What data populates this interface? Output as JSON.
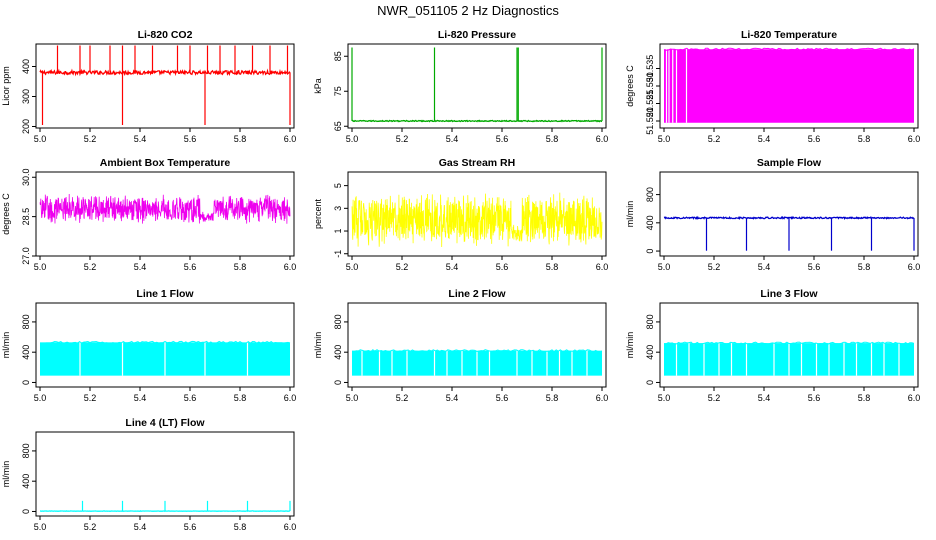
{
  "figure": {
    "title": "NWR_051105  2 Hz Diagnostics"
  },
  "chart_data": [
    {
      "type": "line",
      "title": "Li-820 CO2",
      "ylabel": "Licor ppm",
      "color": "#ff0000",
      "xlim": [
        5.0,
        6.0
      ],
      "ylim": [
        195,
        475
      ],
      "xticks": [
        5.0,
        5.2,
        5.4,
        5.6,
        5.8,
        6.0
      ],
      "xtick_labels": [
        "5.0",
        "5.2",
        "5.4",
        "5.6",
        "5.8",
        "6.0"
      ],
      "yticks": [
        200,
        300,
        400
      ],
      "ytick_labels": [
        "200",
        "300",
        "400"
      ],
      "baseline": 380,
      "noise": 6,
      "spikes_up": [
        5.07,
        5.16,
        5.2,
        5.28,
        5.33,
        5.38,
        5.45,
        5.55,
        5.6,
        5.67,
        5.72,
        5.78,
        5.85,
        5.92,
        5.99
      ],
      "spike_up_to": 470,
      "spikes_down": [
        5.01,
        5.33,
        5.66,
        6.0
      ],
      "spike_down_to": 205
    },
    {
      "type": "line",
      "title": "Li-820 Pressure",
      "ylabel": "kPa",
      "color": "#00aa00",
      "xlim": [
        5.0,
        6.0
      ],
      "ylim": [
        64.5,
        88.5
      ],
      "xticks": [
        5.0,
        5.2,
        5.4,
        5.6,
        5.8,
        6.0
      ],
      "xtick_labels": [
        "5.0",
        "5.2",
        "5.4",
        "5.6",
        "5.8",
        "6.0"
      ],
      "yticks": [
        65,
        75,
        85
      ],
      "ytick_labels": [
        "65",
        "75",
        "85"
      ],
      "baseline": 66.5,
      "noise": 0.15,
      "spikes_up": [
        5.0,
        5.33,
        5.66,
        5.665,
        6.0
      ],
      "spike_up_to": 87.5,
      "spikes_down": [],
      "spike_down_to": 66
    },
    {
      "type": "area",
      "title": "Li-820 Temperature",
      "ylabel": "degrees C",
      "color": "#ff00ff",
      "xlim": [
        5.0,
        6.0
      ],
      "ylim": [
        51.518,
        51.542
      ],
      "xticks": [
        5.0,
        5.2,
        5.4,
        5.6,
        5.8,
        6.0
      ],
      "xtick_labels": [
        "5.0",
        "5.2",
        "5.4",
        "5.6",
        "5.8",
        "6.0"
      ],
      "yticks": [
        51.52,
        51.525,
        51.53,
        51.535
      ],
      "ytick_labels": [
        "51.520",
        "51.525",
        "51.530",
        "51.535"
      ],
      "fill_low": 51.5195,
      "fill_high": 51.5405,
      "gaps": [
        5.01,
        5.02,
        5.035,
        5.05,
        5.09
      ]
    },
    {
      "type": "line",
      "title": "Ambient Box Temperature",
      "ylabel": "degrees C",
      "color": "#ee00ee",
      "xlim": [
        5.0,
        6.0
      ],
      "ylim": [
        27.0,
        30.2
      ],
      "xticks": [
        5.0,
        5.2,
        5.4,
        5.6,
        5.8,
        6.0
      ],
      "xtick_labels": [
        "5.0",
        "5.2",
        "5.4",
        "5.6",
        "5.8",
        "6.0"
      ],
      "yticks": [
        27.0,
        28.5,
        30.0
      ],
      "ytick_labels": [
        "27.0",
        "28.5",
        "30.0"
      ],
      "center": 28.8,
      "amplitude": 0.6,
      "dip_range": [
        5.64,
        5.69
      ],
      "dip_center": 28.5
    },
    {
      "type": "line",
      "title": "Gas Stream RH",
      "ylabel": "percent",
      "color": "#ffff00",
      "xlim": [
        5.0,
        6.0
      ],
      "ylim": [
        -1.2,
        6.2
      ],
      "xticks": [
        5.0,
        5.2,
        5.4,
        5.6,
        5.8,
        6.0
      ],
      "xtick_labels": [
        "5.0",
        "5.2",
        "5.4",
        "5.6",
        "5.8",
        "6.0"
      ],
      "yticks": [
        -1,
        1,
        3,
        5
      ],
      "ytick_labels": [
        "-1",
        "1",
        "3",
        "5"
      ],
      "center": 2.0,
      "amplitude": 2.5,
      "dip_range": [
        5.64,
        5.68
      ],
      "dip_center": 0.8
    },
    {
      "type": "line",
      "title": "Sample Flow",
      "ylabel": "ml/min",
      "color": "#0000cc",
      "xlim": [
        5.0,
        6.0
      ],
      "ylim": [
        -70,
        1120
      ],
      "xticks": [
        5.0,
        5.2,
        5.4,
        5.6,
        5.8,
        6.0
      ],
      "xtick_labels": [
        "5.0",
        "5.2",
        "5.4",
        "5.6",
        "5.8",
        "6.0"
      ],
      "yticks": [
        0,
        400,
        800
      ],
      "ytick_labels": [
        "0",
        "400",
        "800"
      ],
      "baseline": 470,
      "noise": 10,
      "spikes_up": [],
      "spike_up_to": 0,
      "spikes_down": [
        5.17,
        5.33,
        5.5,
        5.67,
        5.83,
        6.0
      ],
      "spike_down_to": 5
    },
    {
      "type": "area",
      "title": "Line 1 Flow",
      "ylabel": "ml/min",
      "color": "#00ffff",
      "xlim": [
        5.0,
        6.0
      ],
      "ylim": [
        -60,
        1050
      ],
      "xticks": [
        5.0,
        5.2,
        5.4,
        5.6,
        5.8,
        6.0
      ],
      "xtick_labels": [
        "5.0",
        "5.2",
        "5.4",
        "5.6",
        "5.8",
        "6.0"
      ],
      "yticks": [
        0,
        400,
        800
      ],
      "ytick_labels": [
        "0",
        "400",
        "800"
      ],
      "fill_low": 90,
      "fill_high": 530,
      "gaps": [
        5.16,
        5.33,
        5.5,
        5.66,
        5.83
      ]
    },
    {
      "type": "area",
      "title": "Line 2 Flow",
      "ylabel": "ml/min",
      "color": "#00ffff",
      "xlim": [
        5.0,
        6.0
      ],
      "ylim": [
        -60,
        1050
      ],
      "xticks": [
        5.0,
        5.2,
        5.4,
        5.6,
        5.8,
        6.0
      ],
      "xtick_labels": [
        "5.0",
        "5.2",
        "5.4",
        "5.6",
        "5.8",
        "6.0"
      ],
      "yticks": [
        0,
        400,
        800
      ],
      "ytick_labels": [
        "0",
        "400",
        "800"
      ],
      "fill_low": 90,
      "fill_high": 420,
      "gaps": [
        5.04,
        5.11,
        5.16,
        5.22,
        5.33,
        5.38,
        5.44,
        5.5,
        5.55,
        5.66,
        5.72,
        5.78,
        5.83,
        5.88,
        5.94
      ]
    },
    {
      "type": "area",
      "title": "Line 3 Flow",
      "ylabel": "ml/min",
      "color": "#00ffff",
      "xlim": [
        5.0,
        6.0
      ],
      "ylim": [
        -60,
        1050
      ],
      "xticks": [
        5.0,
        5.2,
        5.4,
        5.6,
        5.8,
        6.0
      ],
      "xtick_labels": [
        "5.0",
        "5.2",
        "5.4",
        "5.6",
        "5.8",
        "6.0"
      ],
      "yticks": [
        0,
        400,
        800
      ],
      "ytick_labels": [
        "0",
        "400",
        "800"
      ],
      "fill_low": 90,
      "fill_high": 520,
      "gaps": [
        5.05,
        5.1,
        5.16,
        5.22,
        5.27,
        5.33,
        5.44,
        5.5,
        5.55,
        5.61,
        5.66,
        5.72,
        5.77,
        5.83,
        5.88,
        5.94
      ]
    },
    {
      "type": "line",
      "title": "Line 4 (LT) Flow",
      "ylabel": "ml/min",
      "color": "#00ffff",
      "xlim": [
        5.0,
        6.0
      ],
      "ylim": [
        -60,
        1050
      ],
      "xticks": [
        5.0,
        5.2,
        5.4,
        5.6,
        5.8,
        6.0
      ],
      "xtick_labels": [
        "5.0",
        "5.2",
        "5.4",
        "5.6",
        "5.8",
        "6.0"
      ],
      "yticks": [
        0,
        400,
        800
      ],
      "ytick_labels": [
        "0",
        "400",
        "800"
      ],
      "baseline": 5,
      "noise": 2,
      "spikes_up": [
        5.17,
        5.33,
        5.5,
        5.67,
        5.83,
        6.0
      ],
      "spike_up_to": 140,
      "spikes_down": [],
      "spike_down_to": 0
    }
  ]
}
